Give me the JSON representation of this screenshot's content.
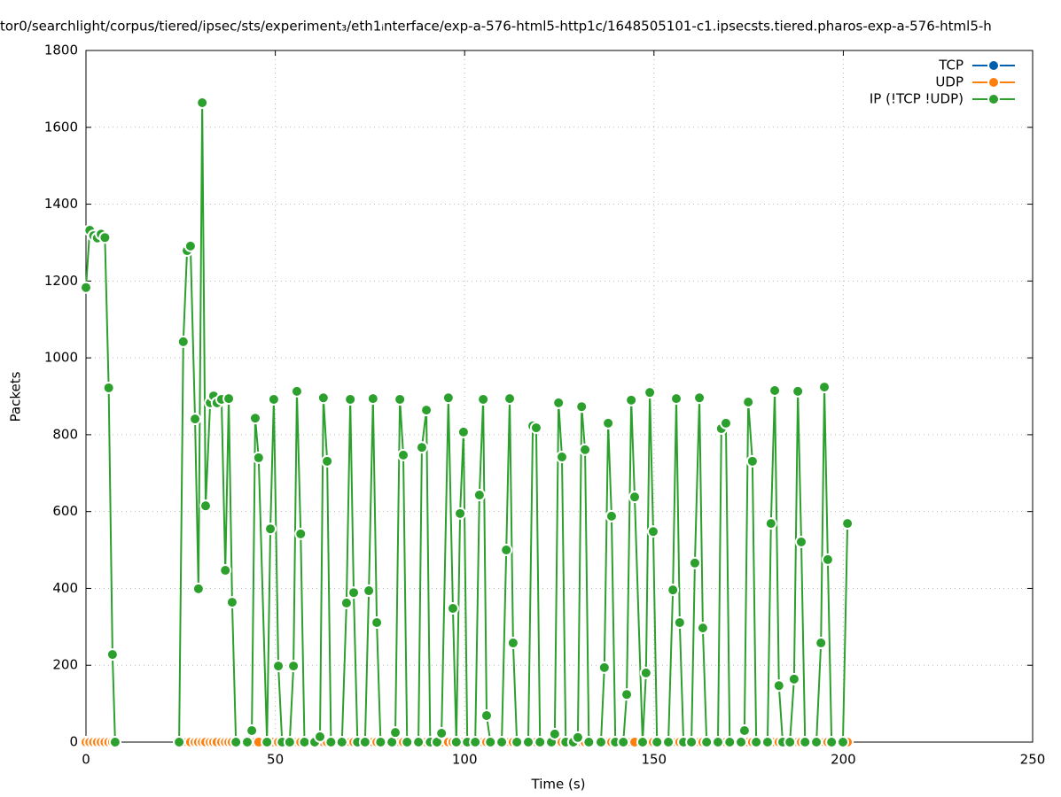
{
  "chart_data": {
    "type": "line",
    "title": "tor0/searchlight/corpus/tiered/ipsec/sts/experiment₃/eth1ᵢnterface/exp-a-576-html5-http1c/1648505101-c1.ipsecsts.tiered.pharos-exp-a-576-html5-h",
    "x_label": "Time (s)",
    "y_label": "Packets",
    "xlim": [
      0,
      250
    ],
    "xticks": [
      0,
      50,
      100,
      150,
      200,
      250
    ],
    "ylim": [
      0,
      1800
    ],
    "yticks": [
      0,
      200,
      400,
      600,
      800,
      1000,
      1200,
      1400,
      1600,
      1800
    ],
    "grid": true,
    "legend": "top-right",
    "x": [
      0,
      1,
      2,
      3,
      4,
      5,
      6,
      7,
      7.7,
      16,
      24.6,
      25.7,
      26.7,
      27.6,
      28.8,
      29.7,
      30.7,
      31.6,
      32.8,
      33.7,
      34.6,
      35.8,
      36.8,
      37.7,
      38.6,
      39.6,
      41,
      42.6,
      43.8,
      44.7,
      45.6,
      47.8,
      48.7,
      49.6,
      50.8,
      51.8,
      52.8,
      53.8,
      54.8,
      55.7,
      56.7,
      57.7,
      59,
      60.4,
      61.8,
      62.7,
      63.7,
      64.7,
      66,
      67.6,
      68.8,
      69.8,
      70.7,
      71.7,
      72.7,
      73.7,
      74.7,
      75.8,
      76.8,
      77.8,
      79,
      80.8,
      81.7,
      82.9,
      83.8,
      84.8,
      86,
      87.8,
      88.7,
      89.9,
      90.9,
      91.8,
      92.7,
      93.9,
      95.7,
      96.9,
      97.8,
      98.8,
      99.7,
      100.7,
      101.8,
      102.8,
      103.9,
      104.9,
      105.8,
      106.8,
      108,
      109.8,
      111,
      111.9,
      112.8,
      113.8,
      115,
      116.8,
      118,
      118.9,
      119.9,
      121,
      122.9,
      123.8,
      124.8,
      125.7,
      126.7,
      127.7,
      128.7,
      129.9,
      130.9,
      131.8,
      132.8,
      134,
      136,
      136.9,
      137.9,
      138.8,
      139.8,
      140.8,
      141.9,
      142.8,
      144,
      144.9,
      147,
      147.9,
      148.9,
      149.8,
      150.8,
      152,
      153.8,
      155,
      155.9,
      156.8,
      157.8,
      159,
      159.9,
      160.8,
      162,
      162.9,
      163.9,
      165,
      166.9,
      167.8,
      169,
      170,
      171.5,
      173,
      173.9,
      174.9,
      176,
      177,
      178.5,
      180,
      180.9,
      181.9,
      183,
      184,
      185,
      185.9,
      187,
      188,
      188.9,
      189.9,
      191,
      192.9,
      194.1,
      195,
      195.9,
      196.9,
      198,
      199.9,
      201.1
    ],
    "series": [
      {
        "name": "TCP",
        "color": "#0060ad",
        "values": [
          0,
          0,
          0,
          0,
          0,
          0,
          0,
          0,
          0,
          null,
          0,
          0,
          0,
          0,
          0,
          0,
          0,
          0,
          0,
          0,
          0,
          0,
          0,
          0,
          0,
          0,
          null,
          0,
          0,
          0,
          0,
          0,
          0,
          0,
          0,
          0,
          null,
          0,
          0,
          0,
          0,
          0,
          null,
          0,
          0,
          0,
          0,
          0,
          null,
          0,
          0,
          0,
          0,
          0,
          null,
          0,
          0,
          0,
          0,
          0,
          null,
          0,
          0,
          0,
          0,
          0,
          null,
          0,
          0,
          0,
          0,
          null,
          0,
          0,
          0,
          0,
          0,
          0,
          0,
          0,
          null,
          0,
          0,
          0,
          0,
          0,
          null,
          0,
          0,
          0,
          0,
          0,
          null,
          0,
          0,
          0,
          0,
          null,
          0,
          0,
          0,
          0,
          0,
          null,
          0,
          0,
          0,
          0,
          0,
          null,
          0,
          0,
          0,
          0,
          0,
          null,
          0,
          0,
          0,
          0,
          0,
          0,
          0,
          0,
          0,
          null,
          0,
          0,
          0,
          0,
          0,
          null,
          0,
          0,
          0,
          0,
          0,
          null,
          0,
          0,
          0,
          0,
          null,
          0,
          0,
          0,
          0,
          0,
          null,
          0,
          0,
          0,
          0,
          0,
          null,
          0,
          0,
          0,
          0,
          0,
          null,
          0,
          0,
          0,
          0,
          0,
          null,
          0,
          0
        ]
      },
      {
        "name": "UDP",
        "color": "#ff7f0e",
        "values": [
          0,
          0,
          0,
          0,
          0,
          0,
          0,
          0,
          0,
          null,
          0,
          0,
          0,
          0,
          0,
          0,
          0,
          0,
          0,
          0,
          0,
          0,
          0,
          0,
          0,
          0,
          null,
          0,
          0,
          0,
          0,
          0,
          0,
          0,
          0,
          0,
          null,
          0,
          0,
          0,
          0,
          0,
          null,
          0,
          0,
          0,
          0,
          0,
          null,
          0,
          0,
          0,
          0,
          0,
          null,
          0,
          0,
          0,
          0,
          0,
          null,
          0,
          0,
          0,
          0,
          0,
          null,
          0,
          0,
          0,
          0,
          null,
          0,
          0,
          0,
          0,
          0,
          0,
          0,
          0,
          null,
          0,
          0,
          0,
          0,
          0,
          null,
          0,
          0,
          0,
          0,
          0,
          null,
          0,
          0,
          0,
          0,
          null,
          0,
          0,
          0,
          0,
          0,
          null,
          0,
          0,
          0,
          0,
          0,
          null,
          0,
          0,
          0,
          0,
          0,
          null,
          0,
          0,
          0,
          0,
          0,
          0,
          0,
          0,
          0,
          null,
          0,
          0,
          0,
          0,
          0,
          null,
          0,
          0,
          0,
          0,
          0,
          null,
          0,
          0,
          0,
          0,
          null,
          0,
          0,
          0,
          0,
          0,
          null,
          0,
          0,
          0,
          0,
          0,
          null,
          0,
          0,
          0,
          0,
          0,
          null,
          0,
          0,
          0,
          0,
          0,
          null,
          0,
          0
        ]
      },
      {
        "name": "IP (!TCP  !UDP)",
        "color": "#2ca02c",
        "values": [
          1183,
          1332,
          1318,
          1312,
          1322,
          1313,
          922,
          228,
          0,
          null,
          0,
          1042,
          1279,
          1291,
          841,
          399,
          1664,
          615,
          883,
          901,
          883,
          892,
          447,
          894,
          364,
          0,
          null,
          0,
          30,
          843,
          740,
          0,
          555,
          892,
          198,
          0,
          null,
          0,
          198,
          913,
          542,
          0,
          null,
          0,
          14,
          896,
          731,
          0,
          null,
          0,
          362,
          892,
          389,
          0,
          null,
          0,
          394,
          894,
          311,
          0,
          null,
          0,
          25,
          892,
          747,
          0,
          null,
          0,
          767,
          864,
          0,
          null,
          0,
          23,
          896,
          348,
          0,
          595,
          807,
          0,
          null,
          0,
          643,
          892,
          69,
          0,
          null,
          0,
          500,
          894,
          258,
          0,
          null,
          0,
          823,
          818,
          0,
          null,
          0,
          21,
          883,
          742,
          0,
          null,
          0,
          12,
          873,
          761,
          0,
          null,
          0,
          194,
          830,
          588,
          0,
          null,
          0,
          124,
          890,
          638,
          0,
          180,
          910,
          548,
          0,
          null,
          0,
          396,
          894,
          311,
          0,
          null,
          0,
          466,
          896,
          297,
          0,
          null,
          0,
          816,
          830,
          0,
          null,
          0,
          30,
          885,
          731,
          0,
          null,
          0,
          569,
          915,
          147,
          0,
          null,
          0,
          164,
          913,
          521,
          0,
          null,
          0,
          258,
          924,
          475,
          0,
          null,
          0,
          569
        ]
      }
    ]
  }
}
